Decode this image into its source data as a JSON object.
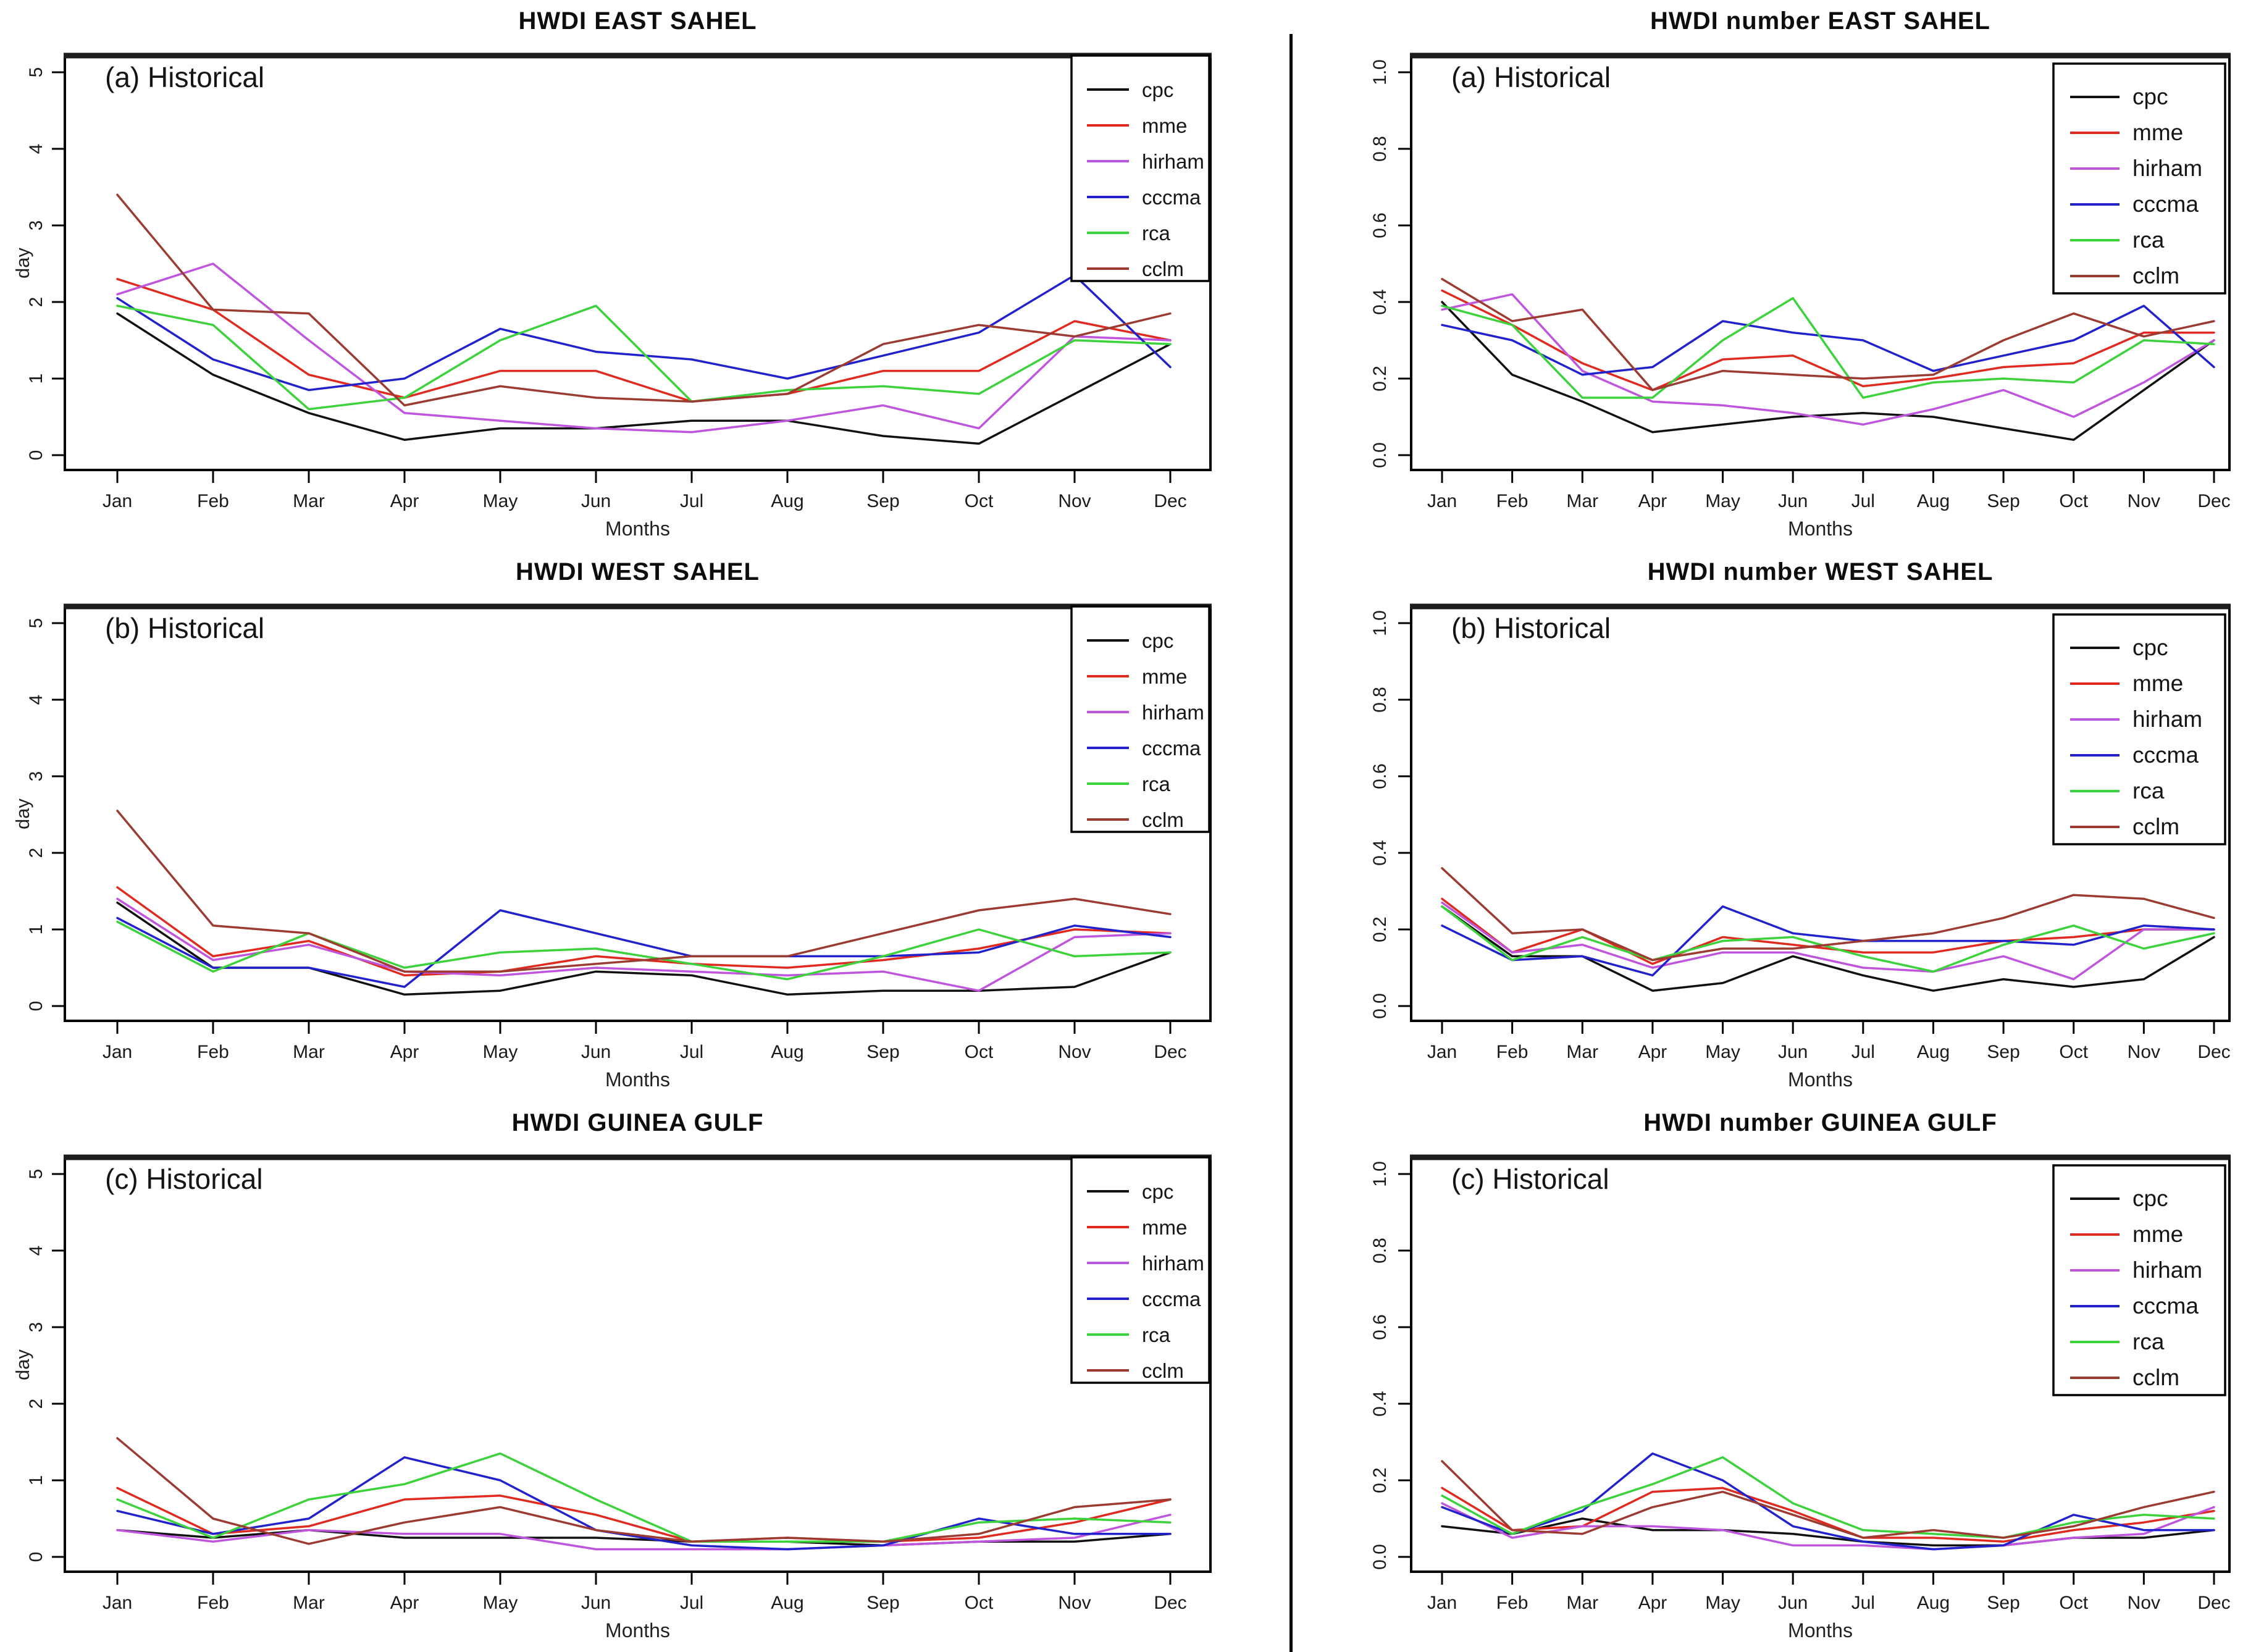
{
  "figure": {
    "x_categories": [
      "Jan",
      "Feb",
      "Mar",
      "Apr",
      "May",
      "Jun",
      "Jul",
      "Aug",
      "Sep",
      "Oct",
      "Nov",
      "Dec"
    ],
    "x_axis_title": "Months",
    "series_names": [
      "cpc",
      "mme",
      "hirham",
      "cccma",
      "rca",
      "cclm"
    ],
    "series_colors": {
      "cpc": "#111111",
      "mme": "#e02a1f",
      "hirham": "#bf55dd",
      "cccma": "#2222cc",
      "rca": "#3bd23b",
      "cclm": "#9b3b31"
    },
    "legend_position": "top-right",
    "grid": false
  },
  "chart_data": [
    {
      "type": "line",
      "title": "HWDI EAST SAHEL",
      "panel_label": "(a) Historical",
      "ylabel": "day",
      "xlabel": "Months",
      "ylim": [
        0,
        5
      ],
      "yticks": [
        0,
        1,
        2,
        3,
        4,
        5
      ],
      "ytick_labels": [
        "0",
        "1",
        "2",
        "3",
        "4",
        "5"
      ],
      "categories": [
        "Jan",
        "Feb",
        "Mar",
        "Apr",
        "May",
        "Jun",
        "Jul",
        "Aug",
        "Sep",
        "Oct",
        "Nov",
        "Dec"
      ],
      "series": [
        {
          "name": "cpc",
          "values": [
            1.85,
            1.05,
            0.55,
            0.2,
            0.35,
            0.35,
            0.45,
            0.45,
            0.25,
            0.15,
            0.8,
            1.45
          ]
        },
        {
          "name": "mme",
          "values": [
            2.3,
            1.9,
            1.05,
            0.75,
            1.1,
            1.1,
            0.7,
            0.8,
            1.1,
            1.1,
            1.75,
            1.5
          ]
        },
        {
          "name": "hirham",
          "values": [
            2.1,
            2.5,
            1.5,
            0.55,
            0.45,
            0.35,
            0.3,
            0.45,
            0.65,
            0.35,
            1.55,
            1.5
          ]
        },
        {
          "name": "cccma",
          "values": [
            2.05,
            1.25,
            0.85,
            1.0,
            1.65,
            1.35,
            1.25,
            1.0,
            1.3,
            1.6,
            2.35,
            1.15
          ]
        },
        {
          "name": "rca",
          "values": [
            1.95,
            1.7,
            0.6,
            0.75,
            1.5,
            1.95,
            0.7,
            0.85,
            0.9,
            0.8,
            1.5,
            1.45
          ]
        },
        {
          "name": "cclm",
          "values": [
            3.4,
            1.9,
            1.85,
            0.65,
            0.9,
            0.75,
            0.7,
            0.8,
            1.45,
            1.7,
            1.55,
            1.85
          ]
        }
      ]
    },
    {
      "type": "line",
      "title": "HWDI number EAST SAHEL",
      "panel_label": "(a) Historical",
      "ylabel": "",
      "xlabel": "Months",
      "ylim": [
        0,
        1
      ],
      "yticks": [
        0,
        0.2,
        0.4,
        0.6,
        0.8,
        1.0
      ],
      "ytick_labels": [
        "0.0",
        "0.2",
        "0.4",
        "0.6",
        "0.8",
        "1.0"
      ],
      "categories": [
        "Jan",
        "Feb",
        "Mar",
        "Apr",
        "May",
        "Jun",
        "Jul",
        "Aug",
        "Sep",
        "Oct",
        "Nov",
        "Dec"
      ],
      "series": [
        {
          "name": "cpc",
          "values": [
            0.4,
            0.21,
            0.14,
            0.06,
            0.08,
            0.1,
            0.11,
            0.1,
            0.07,
            0.04,
            0.17,
            0.3
          ]
        },
        {
          "name": "mme",
          "values": [
            0.43,
            0.34,
            0.24,
            0.17,
            0.25,
            0.26,
            0.18,
            0.2,
            0.23,
            0.24,
            0.32,
            0.32
          ]
        },
        {
          "name": "hirham",
          "values": [
            0.38,
            0.42,
            0.22,
            0.14,
            0.13,
            0.11,
            0.08,
            0.12,
            0.17,
            0.1,
            0.19,
            0.3
          ]
        },
        {
          "name": "cccma",
          "values": [
            0.34,
            0.3,
            0.21,
            0.23,
            0.35,
            0.32,
            0.3,
            0.22,
            0.26,
            0.3,
            0.39,
            0.23
          ]
        },
        {
          "name": "rca",
          "values": [
            0.39,
            0.34,
            0.15,
            0.15,
            0.3,
            0.41,
            0.15,
            0.19,
            0.2,
            0.19,
            0.3,
            0.29
          ]
        },
        {
          "name": "cclm",
          "values": [
            0.46,
            0.35,
            0.38,
            0.17,
            0.22,
            0.21,
            0.2,
            0.21,
            0.3,
            0.37,
            0.31,
            0.35
          ]
        }
      ]
    },
    {
      "type": "line",
      "title": "HWDI WEST SAHEL",
      "panel_label": "(b) Historical",
      "ylabel": "day",
      "xlabel": "Months",
      "ylim": [
        0,
        5
      ],
      "yticks": [
        0,
        1,
        2,
        3,
        4,
        5
      ],
      "ytick_labels": [
        "0",
        "1",
        "2",
        "3",
        "4",
        "5"
      ],
      "categories": [
        "Jan",
        "Feb",
        "Mar",
        "Apr",
        "May",
        "Jun",
        "Jul",
        "Aug",
        "Sep",
        "Oct",
        "Nov",
        "Dec"
      ],
      "series": [
        {
          "name": "cpc",
          "values": [
            1.35,
            0.5,
            0.5,
            0.15,
            0.2,
            0.45,
            0.4,
            0.15,
            0.2,
            0.2,
            0.25,
            0.7
          ]
        },
        {
          "name": "mme",
          "values": [
            1.55,
            0.65,
            0.85,
            0.4,
            0.45,
            0.65,
            0.55,
            0.5,
            0.6,
            0.75,
            1.0,
            0.95
          ]
        },
        {
          "name": "hirham",
          "values": [
            1.4,
            0.6,
            0.8,
            0.45,
            0.4,
            0.5,
            0.45,
            0.4,
            0.45,
            0.2,
            0.9,
            0.95
          ]
        },
        {
          "name": "cccma",
          "values": [
            1.15,
            0.5,
            0.5,
            0.25,
            1.25,
            0.95,
            0.65,
            0.65,
            0.65,
            0.7,
            1.05,
            0.9
          ]
        },
        {
          "name": "rca",
          "values": [
            1.1,
            0.45,
            0.95,
            0.5,
            0.7,
            0.75,
            0.55,
            0.35,
            0.65,
            1.0,
            0.65,
            0.7
          ]
        },
        {
          "name": "cclm",
          "values": [
            2.55,
            1.05,
            0.95,
            0.45,
            0.45,
            0.55,
            0.65,
            0.65,
            0.95,
            1.25,
            1.4,
            1.2
          ]
        }
      ]
    },
    {
      "type": "line",
      "title": "HWDI number WEST SAHEL",
      "panel_label": "(b) Historical",
      "ylabel": "",
      "xlabel": "Months",
      "ylim": [
        0,
        1
      ],
      "yticks": [
        0,
        0.2,
        0.4,
        0.6,
        0.8,
        1.0
      ],
      "ytick_labels": [
        "0.0",
        "0.2",
        "0.4",
        "0.6",
        "0.8",
        "1.0"
      ],
      "categories": [
        "Jan",
        "Feb",
        "Mar",
        "Apr",
        "May",
        "Jun",
        "Jul",
        "Aug",
        "Sep",
        "Oct",
        "Nov",
        "Dec"
      ],
      "series": [
        {
          "name": "cpc",
          "values": [
            0.26,
            0.13,
            0.13,
            0.04,
            0.06,
            0.13,
            0.08,
            0.04,
            0.07,
            0.05,
            0.07,
            0.18
          ]
        },
        {
          "name": "mme",
          "values": [
            0.28,
            0.14,
            0.2,
            0.11,
            0.18,
            0.16,
            0.14,
            0.14,
            0.17,
            0.18,
            0.2,
            0.2
          ]
        },
        {
          "name": "hirham",
          "values": [
            0.27,
            0.14,
            0.16,
            0.1,
            0.14,
            0.14,
            0.1,
            0.09,
            0.13,
            0.07,
            0.2,
            0.2
          ]
        },
        {
          "name": "cccma",
          "values": [
            0.21,
            0.12,
            0.13,
            0.08,
            0.26,
            0.19,
            0.17,
            0.17,
            0.17,
            0.16,
            0.21,
            0.2
          ]
        },
        {
          "name": "rca",
          "values": [
            0.26,
            0.12,
            0.18,
            0.12,
            0.17,
            0.18,
            0.13,
            0.09,
            0.16,
            0.21,
            0.15,
            0.19
          ]
        },
        {
          "name": "cclm",
          "values": [
            0.36,
            0.19,
            0.2,
            0.12,
            0.15,
            0.15,
            0.17,
            0.19,
            0.23,
            0.29,
            0.28,
            0.23
          ]
        }
      ]
    },
    {
      "type": "line",
      "title": "HWDI GUINEA GULF",
      "panel_label": "(c) Historical",
      "ylabel": "day",
      "xlabel": "Months",
      "ylim": [
        0,
        5
      ],
      "yticks": [
        0,
        1,
        2,
        3,
        4,
        5
      ],
      "ytick_labels": [
        "0",
        "1",
        "2",
        "3",
        "4",
        "5"
      ],
      "categories": [
        "Jan",
        "Feb",
        "Mar",
        "Apr",
        "May",
        "Jun",
        "Jul",
        "Aug",
        "Sep",
        "Oct",
        "Nov",
        "Dec"
      ],
      "series": [
        {
          "name": "cpc",
          "values": [
            0.35,
            0.25,
            0.35,
            0.25,
            0.25,
            0.25,
            0.2,
            0.2,
            0.15,
            0.2,
            0.2,
            0.3
          ]
        },
        {
          "name": "mme",
          "values": [
            0.9,
            0.3,
            0.4,
            0.75,
            0.8,
            0.55,
            0.2,
            0.25,
            0.2,
            0.25,
            0.45,
            0.75
          ]
        },
        {
          "name": "hirham",
          "values": [
            0.35,
            0.2,
            0.35,
            0.3,
            0.3,
            0.1,
            0.1,
            0.1,
            0.15,
            0.2,
            0.25,
            0.55
          ]
        },
        {
          "name": "cccma",
          "values": [
            0.6,
            0.3,
            0.5,
            1.3,
            1.0,
            0.35,
            0.15,
            0.1,
            0.15,
            0.5,
            0.3,
            0.3
          ]
        },
        {
          "name": "rca",
          "values": [
            0.75,
            0.25,
            0.75,
            0.95,
            1.35,
            0.75,
            0.2,
            0.2,
            0.2,
            0.45,
            0.5,
            0.45
          ]
        },
        {
          "name": "cclm",
          "values": [
            1.55,
            0.5,
            0.17,
            0.45,
            0.65,
            0.35,
            0.2,
            0.25,
            0.2,
            0.3,
            0.65,
            0.75
          ]
        }
      ]
    },
    {
      "type": "line",
      "title": "HWDI number GUINEA GULF",
      "panel_label": "(c) Historical",
      "ylabel": "",
      "xlabel": "Months",
      "ylim": [
        0,
        1
      ],
      "yticks": [
        0,
        0.2,
        0.4,
        0.6,
        0.8,
        1.0
      ],
      "ytick_labels": [
        "0.0",
        "0.2",
        "0.4",
        "0.6",
        "0.8",
        "1.0"
      ],
      "categories": [
        "Jan",
        "Feb",
        "Mar",
        "Apr",
        "May",
        "Jun",
        "Jul",
        "Aug",
        "Sep",
        "Oct",
        "Nov",
        "Dec"
      ],
      "series": [
        {
          "name": "cpc",
          "values": [
            0.08,
            0.06,
            0.1,
            0.07,
            0.07,
            0.06,
            0.04,
            0.03,
            0.03,
            0.05,
            0.05,
            0.07
          ]
        },
        {
          "name": "mme",
          "values": [
            0.18,
            0.07,
            0.08,
            0.17,
            0.18,
            0.12,
            0.05,
            0.05,
            0.04,
            0.07,
            0.09,
            0.12
          ]
        },
        {
          "name": "hirham",
          "values": [
            0.14,
            0.05,
            0.08,
            0.08,
            0.07,
            0.03,
            0.03,
            0.02,
            0.03,
            0.05,
            0.06,
            0.13
          ]
        },
        {
          "name": "cccma",
          "values": [
            0.13,
            0.06,
            0.12,
            0.27,
            0.2,
            0.08,
            0.04,
            0.02,
            0.03,
            0.11,
            0.07,
            0.07
          ]
        },
        {
          "name": "rca",
          "values": [
            0.16,
            0.06,
            0.13,
            0.19,
            0.26,
            0.14,
            0.07,
            0.06,
            0.05,
            0.09,
            0.11,
            0.1
          ]
        },
        {
          "name": "cclm",
          "values": [
            0.25,
            0.07,
            0.06,
            0.13,
            0.17,
            0.11,
            0.05,
            0.07,
            0.05,
            0.08,
            0.13,
            0.17
          ]
        }
      ]
    }
  ]
}
